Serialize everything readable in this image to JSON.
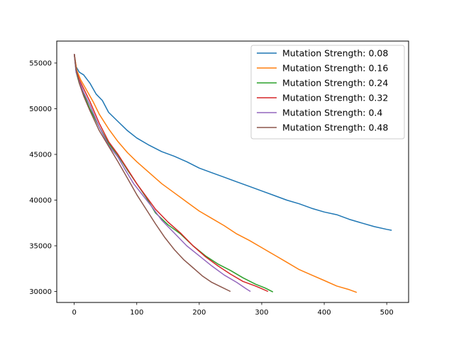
{
  "chart_data": {
    "type": "line",
    "title": "",
    "xlabel": "",
    "ylabel": "",
    "xlim": [
      -28,
      535
    ],
    "ylim": [
      28800,
      57400
    ],
    "xticks": [
      0,
      100,
      200,
      300,
      400,
      500
    ],
    "yticks": [
      30000,
      35000,
      40000,
      45000,
      50000,
      55000
    ],
    "grid": false,
    "legend_position": "top-right",
    "series": [
      {
        "name": "Mutation Strength: 0.08",
        "color": "#1f77b4",
        "points": [
          [
            0,
            56000
          ],
          [
            3,
            54600
          ],
          [
            8,
            54000
          ],
          [
            15,
            53700
          ],
          [
            25,
            52800
          ],
          [
            35,
            51600
          ],
          [
            45,
            50900
          ],
          [
            55,
            49600
          ],
          [
            70,
            48600
          ],
          [
            85,
            47600
          ],
          [
            100,
            46800
          ],
          [
            120,
            46000
          ],
          [
            140,
            45300
          ],
          [
            160,
            44800
          ],
          [
            180,
            44200
          ],
          [
            200,
            43500
          ],
          [
            220,
            43000
          ],
          [
            240,
            42500
          ],
          [
            260,
            42000
          ],
          [
            280,
            41500
          ],
          [
            300,
            41000
          ],
          [
            320,
            40500
          ],
          [
            340,
            40000
          ],
          [
            360,
            39600
          ],
          [
            380,
            39100
          ],
          [
            400,
            38700
          ],
          [
            420,
            38400
          ],
          [
            440,
            37900
          ],
          [
            460,
            37500
          ],
          [
            480,
            37100
          ],
          [
            500,
            36800
          ],
          [
            508,
            36700
          ]
        ]
      },
      {
        "name": "Mutation Strength: 0.16",
        "color": "#ff7f0e",
        "points": [
          [
            0,
            56000
          ],
          [
            4,
            54200
          ],
          [
            10,
            53200
          ],
          [
            20,
            52000
          ],
          [
            30,
            50800
          ],
          [
            40,
            49400
          ],
          [
            55,
            47800
          ],
          [
            70,
            46400
          ],
          [
            85,
            45200
          ],
          [
            100,
            44200
          ],
          [
            120,
            43000
          ],
          [
            140,
            41800
          ],
          [
            160,
            40800
          ],
          [
            180,
            39800
          ],
          [
            200,
            38800
          ],
          [
            220,
            38000
          ],
          [
            240,
            37200
          ],
          [
            260,
            36300
          ],
          [
            280,
            35600
          ],
          [
            300,
            34800
          ],
          [
            320,
            34000
          ],
          [
            340,
            33200
          ],
          [
            360,
            32400
          ],
          [
            380,
            31800
          ],
          [
            400,
            31200
          ],
          [
            420,
            30600
          ],
          [
            440,
            30200
          ],
          [
            452,
            29900
          ]
        ]
      },
      {
        "name": "Mutation Strength: 0.24",
        "color": "#2ca02c",
        "points": [
          [
            0,
            56000
          ],
          [
            3,
            54000
          ],
          [
            8,
            52800
          ],
          [
            15,
            51600
          ],
          [
            25,
            50000
          ],
          [
            40,
            48000
          ],
          [
            55,
            46200
          ],
          [
            70,
            44900
          ],
          [
            85,
            43300
          ],
          [
            100,
            41800
          ],
          [
            115,
            40300
          ],
          [
            130,
            38600
          ],
          [
            150,
            37300
          ],
          [
            170,
            36300
          ],
          [
            190,
            35000
          ],
          [
            210,
            33900
          ],
          [
            230,
            33000
          ],
          [
            250,
            32300
          ],
          [
            270,
            31500
          ],
          [
            290,
            30800
          ],
          [
            305,
            30400
          ],
          [
            318,
            29950
          ]
        ]
      },
      {
        "name": "Mutation Strength: 0.32",
        "color": "#d62728",
        "points": [
          [
            0,
            56000
          ],
          [
            3,
            54200
          ],
          [
            8,
            53200
          ],
          [
            15,
            52200
          ],
          [
            25,
            50800
          ],
          [
            40,
            48400
          ],
          [
            55,
            46400
          ],
          [
            70,
            45000
          ],
          [
            85,
            43400
          ],
          [
            100,
            41800
          ],
          [
            115,
            40400
          ],
          [
            130,
            39000
          ],
          [
            150,
            37600
          ],
          [
            170,
            36400
          ],
          [
            190,
            35000
          ],
          [
            210,
            33800
          ],
          [
            230,
            32800
          ],
          [
            250,
            31900
          ],
          [
            270,
            31100
          ],
          [
            290,
            30600
          ],
          [
            300,
            30300
          ],
          [
            310,
            30000
          ]
        ]
      },
      {
        "name": "Mutation Strength: 0.4",
        "color": "#9467bd",
        "points": [
          [
            0,
            56000
          ],
          [
            3,
            54000
          ],
          [
            8,
            53000
          ],
          [
            15,
            51800
          ],
          [
            25,
            50400
          ],
          [
            40,
            48000
          ],
          [
            55,
            46000
          ],
          [
            70,
            44700
          ],
          [
            80,
            43500
          ],
          [
            95,
            41800
          ],
          [
            110,
            40500
          ],
          [
            125,
            39200
          ],
          [
            140,
            37800
          ],
          [
            160,
            36400
          ],
          [
            180,
            35000
          ],
          [
            200,
            33900
          ],
          [
            220,
            32800
          ],
          [
            240,
            31800
          ],
          [
            260,
            31000
          ],
          [
            275,
            30300
          ],
          [
            282,
            30000
          ]
        ]
      },
      {
        "name": "Mutation Strength: 0.48",
        "color": "#8c564b",
        "points": [
          [
            0,
            56000
          ],
          [
            3,
            54300
          ],
          [
            8,
            52800
          ],
          [
            15,
            51400
          ],
          [
            25,
            49800
          ],
          [
            40,
            47600
          ],
          [
            55,
            45900
          ],
          [
            70,
            44200
          ],
          [
            85,
            42400
          ],
          [
            100,
            40600
          ],
          [
            115,
            39000
          ],
          [
            130,
            37400
          ],
          [
            145,
            35900
          ],
          [
            160,
            34600
          ],
          [
            175,
            33500
          ],
          [
            190,
            32600
          ],
          [
            205,
            31700
          ],
          [
            220,
            31000
          ],
          [
            235,
            30500
          ],
          [
            250,
            30000
          ]
        ]
      }
    ]
  }
}
